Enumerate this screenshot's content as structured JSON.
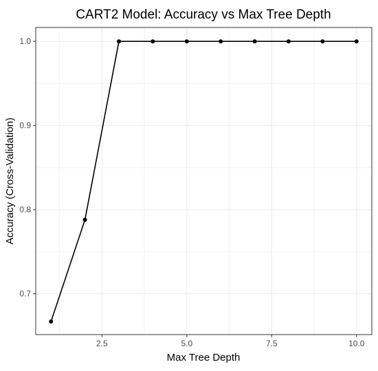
{
  "chart_data": {
    "type": "line",
    "title": "CART2 Model: Accuracy vs Max Tree Depth",
    "xlabel": "Max Tree Depth",
    "ylabel": "Accuracy (Cross-Validation)",
    "x": [
      1,
      2,
      3,
      4,
      5,
      6,
      7,
      8,
      9,
      10
    ],
    "series": [
      {
        "values": [
          0.667,
          0.788,
          1.0,
          1.0,
          1.0,
          1.0,
          1.0,
          1.0,
          1.0,
          1.0
        ]
      }
    ],
    "xlim": [
      0.55,
      10.45
    ],
    "ylim": [
      0.6515,
      1.0165
    ],
    "x_ticks": [
      2.5,
      5.0,
      7.5,
      10.0
    ],
    "x_tick_labels": [
      "2.5",
      "5.0",
      "7.5",
      "10.0"
    ],
    "x_minor_ticks": [
      1.25,
      3.75,
      6.25,
      8.75
    ],
    "y_ticks": [
      0.7,
      0.8,
      0.9,
      1.0
    ],
    "y_tick_labels": [
      "0.7",
      "0.8",
      "0.9",
      "1.0"
    ],
    "y_minor_ticks": [
      0.75,
      0.85,
      0.95
    ],
    "grid": true,
    "legend": "none",
    "colors": {
      "line": "#000000",
      "point": "#000000",
      "grid": "#ebebeb",
      "panel_border": "#333333",
      "tick_text": "#4d4d4d"
    }
  }
}
